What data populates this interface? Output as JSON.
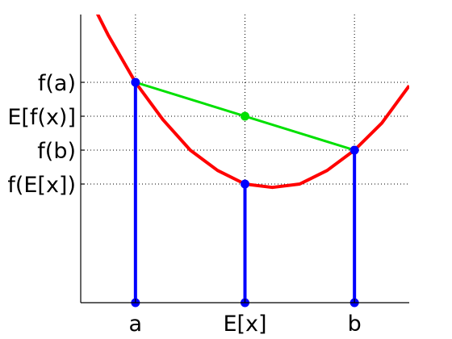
{
  "chart_data": {
    "type": "line",
    "title": "",
    "xlabel": "",
    "ylabel": "",
    "grid": "dotted at tick positions",
    "xlim": [
      0,
      12
    ],
    "ylim": [
      0,
      8.5
    ],
    "x_ticks": [
      {
        "value": 2,
        "label": "a"
      },
      {
        "value": 6,
        "label": "E[x]"
      },
      {
        "value": 10,
        "label": "b"
      }
    ],
    "y_ticks": [
      {
        "value": 6.5,
        "label": "f(a)"
      },
      {
        "value": 5.5,
        "label": "E[f(x)]"
      },
      {
        "value": 4.5,
        "label": "f(b)"
      },
      {
        "value": 3.5,
        "label": "f(E[x])"
      }
    ],
    "curve": {
      "function": "convex quadratic",
      "x": [
        0,
        1,
        2,
        3,
        4,
        5,
        6,
        7,
        8,
        9,
        10,
        11,
        12
      ],
      "y": [
        9.5,
        7.9,
        6.5,
        5.4,
        4.5,
        3.9,
        3.5,
        3.4,
        3.5,
        3.9,
        4.5,
        5.3,
        6.4
      ],
      "color": "#ff0000"
    },
    "chord": {
      "x": [
        2,
        10
      ],
      "y": [
        6.5,
        4.5
      ],
      "color": "#00e000"
    },
    "points": [
      {
        "x": 2,
        "y": 6.5,
        "color": "#0000ff"
      },
      {
        "x": 6,
        "y": 3.5,
        "color": "#0000ff"
      },
      {
        "x": 10,
        "y": 4.5,
        "color": "#0000ff"
      },
      {
        "x": 6,
        "y": 5.5,
        "color": "#00e000"
      }
    ],
    "stems": {
      "x": [
        2,
        6,
        10
      ],
      "y": [
        6.5,
        3.5,
        4.5
      ],
      "color": "#0000ff"
    }
  }
}
